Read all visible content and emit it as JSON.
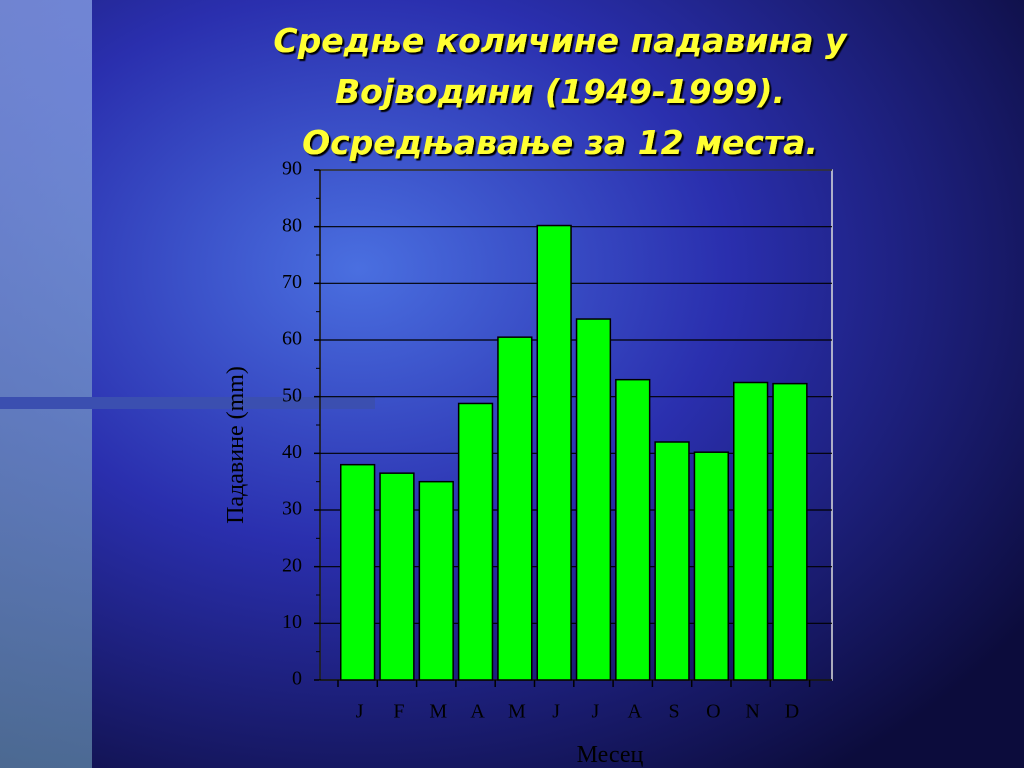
{
  "chart_data": {
    "type": "bar",
    "title": [
      "Средње количине падавина у",
      "Војводини (1949-1999).",
      "Осредњавање за 12 места."
    ],
    "x_label": "Месец",
    "y_label": "Падавине  (mm)",
    "categories": [
      "J",
      "F",
      "M",
      "A",
      "M",
      "J",
      "J",
      "A",
      "S",
      "O",
      "N",
      "D"
    ],
    "values": [
      38,
      36.5,
      35,
      48.8,
      60.5,
      80.2,
      63.7,
      53,
      42,
      40.2,
      52.5,
      52.3
    ],
    "color": "#00ff00",
    "ylim": [
      0,
      90
    ],
    "yticks": [
      0,
      10,
      20,
      30,
      40,
      50,
      60,
      70,
      80,
      90
    ],
    "grid": true
  }
}
